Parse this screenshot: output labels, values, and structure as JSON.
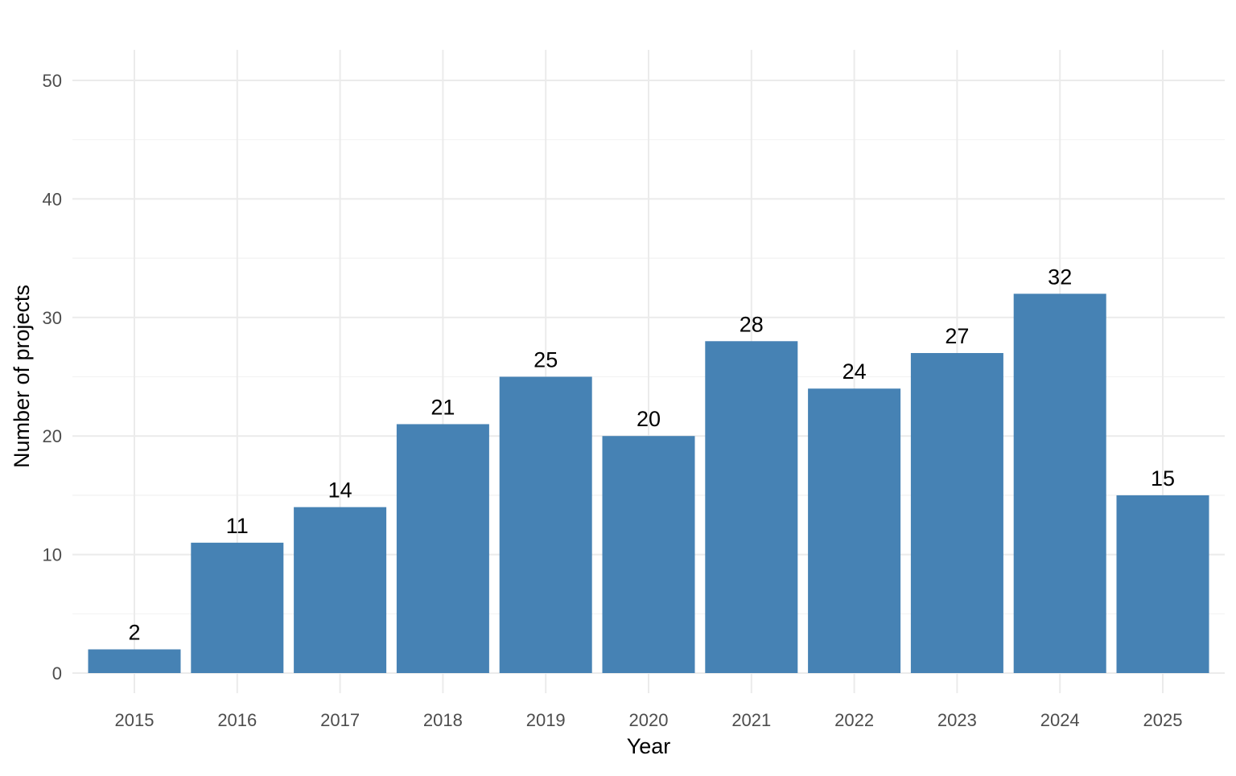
{
  "colors": {
    "bar": "#4682b4",
    "background": "#ffffff",
    "grid": "#ebebeb"
  },
  "chart_data": {
    "type": "bar",
    "title": "",
    "xlabel": "Year",
    "ylabel": "Number of projects",
    "categories": [
      "2015",
      "2016",
      "2017",
      "2018",
      "2019",
      "2020",
      "2021",
      "2022",
      "2023",
      "2024",
      "2025"
    ],
    "values": [
      2,
      11,
      14,
      21,
      25,
      20,
      28,
      24,
      27,
      32,
      15
    ],
    "ylim": [
      0,
      50
    ],
    "yticks": [
      0,
      10,
      20,
      30,
      40,
      50
    ],
    "data_labels": true,
    "grid": true,
    "legend": "none"
  }
}
